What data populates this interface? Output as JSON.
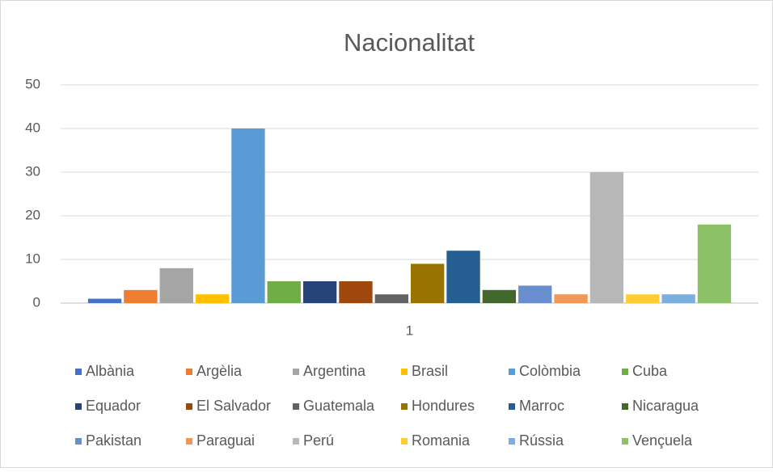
{
  "chart_data": {
    "type": "bar",
    "title": "Nacionalitat",
    "categories": [
      "1"
    ],
    "series": [
      {
        "name": "Albània",
        "color": "#4472c4",
        "values": [
          1
        ]
      },
      {
        "name": "Argèlia",
        "color": "#ed7d31",
        "values": [
          3
        ]
      },
      {
        "name": "Argentina",
        "color": "#a5a5a5",
        "values": [
          8
        ]
      },
      {
        "name": "Brasil",
        "color": "#ffc000",
        "values": [
          2
        ]
      },
      {
        "name": "Colòmbia",
        "color": "#5b9bd5",
        "values": [
          40
        ]
      },
      {
        "name": "Cuba",
        "color": "#70ad47",
        "values": [
          5
        ]
      },
      {
        "name": "Equador",
        "color": "#264478",
        "values": [
          5
        ]
      },
      {
        "name": "El Salvador",
        "color": "#9e480e",
        "values": [
          5
        ]
      },
      {
        "name": "Guatemala",
        "color": "#636363",
        "values": [
          2
        ]
      },
      {
        "name": "Hondures",
        "color": "#997300",
        "values": [
          9
        ]
      },
      {
        "name": "Marroc",
        "color": "#255e91",
        "values": [
          12
        ]
      },
      {
        "name": "Nicaragua",
        "color": "#43682b",
        "values": [
          3
        ]
      },
      {
        "name": "Pakistan",
        "color": "#698ed0",
        "values": [
          4
        ]
      },
      {
        "name": "Paraguai",
        "color": "#f1975a",
        "values": [
          2
        ]
      },
      {
        "name": "Perú",
        "color": "#b7b7b7",
        "values": [
          30
        ]
      },
      {
        "name": "Romania",
        "color": "#ffcd33",
        "values": [
          2
        ]
      },
      {
        "name": "Rússia",
        "color": "#7cafdd",
        "values": [
          2
        ]
      },
      {
        "name": "Vençuela",
        "color": "#8cc168",
        "values": [
          18
        ]
      }
    ],
    "ylim": [
      0,
      50
    ],
    "yticks": [
      0,
      10,
      20,
      30,
      40,
      50
    ],
    "grid": true,
    "legend": "bottom"
  }
}
